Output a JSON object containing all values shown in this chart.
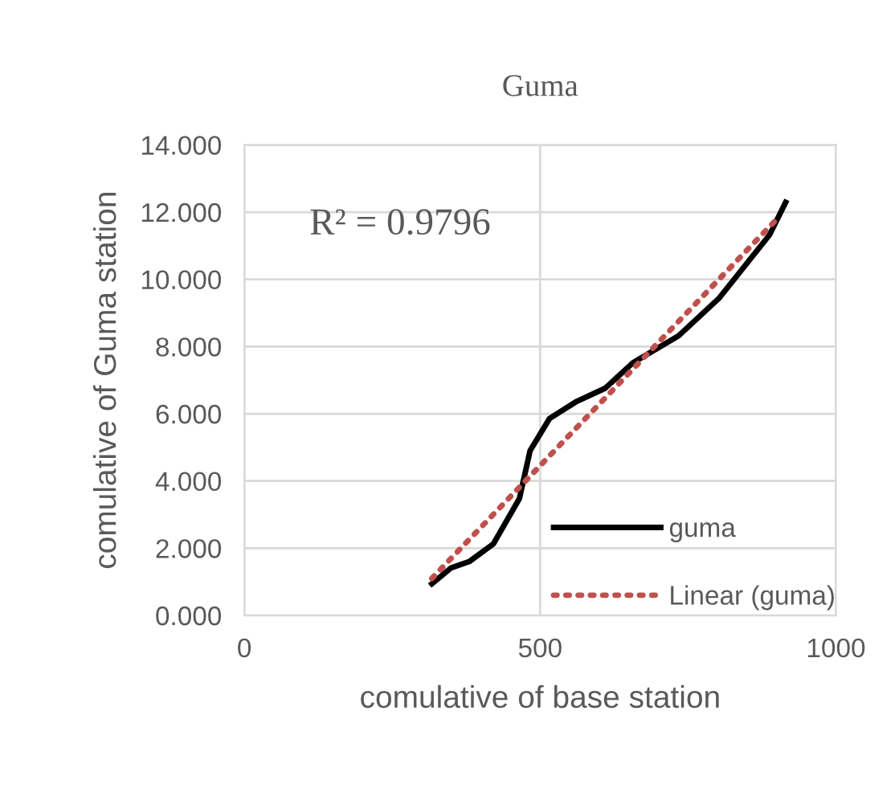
{
  "chart_data": {
    "type": "line",
    "title": "Guma",
    "xlabel": "comulative of base station",
    "ylabel": "comulative of Guma station",
    "annotations": [
      "R² = 0.9796"
    ],
    "xlim": [
      0,
      1000
    ],
    "xticks": [
      0,
      500,
      1000
    ],
    "ylim": [
      0,
      14
    ],
    "yticks": [
      {
        "value": 0,
        "label": "0.000"
      },
      {
        "value": 2,
        "label": "2.000"
      },
      {
        "value": 4,
        "label": "4.000"
      },
      {
        "value": 6,
        "label": "6.000"
      },
      {
        "value": 8,
        "label": "8.000"
      },
      {
        "value": 10,
        "label": "10.000"
      },
      {
        "value": 12,
        "label": "12.000"
      },
      {
        "value": 14,
        "label": "14.000"
      }
    ],
    "grid": true,
    "legend": "bottom right",
    "series": [
      {
        "name": "guma",
        "color": "#000000",
        "line_style": "solid",
        "x": [
          317,
          349,
          380,
          421,
          465,
          483,
          516,
          562,
          610,
          657,
          734,
          802,
          888,
          915
        ],
        "values": [
          0.94,
          1.41,
          1.6,
          2.13,
          3.48,
          4.9,
          5.86,
          6.37,
          6.76,
          7.52,
          8.32,
          9.43,
          11.33,
          12.29
        ]
      },
      {
        "name": "Linear (guma)",
        "color": "#c0504d",
        "line_style": "dotted",
        "x": [
          317,
          901
        ],
        "values": [
          1.1,
          11.81
        ]
      }
    ]
  }
}
